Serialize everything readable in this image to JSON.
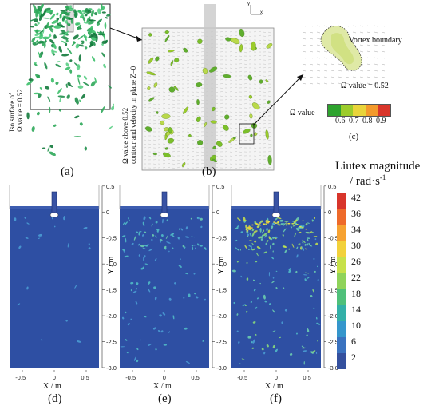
{
  "top": {
    "a": {
      "label": "Iso surface of",
      "label2": "Ω value = 0.52",
      "caption": "(a)"
    },
    "b": {
      "label1": "Ω value above 0.52",
      "label2": "contour and velocity in plane Z=0",
      "caption": "(b)",
      "axis_y": "y",
      "axis_x": "x"
    },
    "c": {
      "vortex_boundary": "Vortex boundary",
      "omega_value_eq": "Ω value = 0.52",
      "omega_value": "Ω value",
      "colorbar_ticks": [
        "0.6",
        "0.7",
        "0.8",
        "0.9"
      ],
      "colorbar_colors": [
        "#2ea32e",
        "#9ccc2b",
        "#e9d43a",
        "#f39a2b",
        "#d9362b"
      ],
      "caption": "(c)"
    }
  },
  "bottom": {
    "legend_title1": "Liutex magnitude",
    "legend_title2": "/ rad·s",
    "legend_sup": "-1",
    "legend_ticks": [
      "42",
      "36",
      "34",
      "30",
      "26",
      "22",
      "18",
      "14",
      "10",
      "6",
      "2"
    ],
    "y_ticks": [
      "0.5",
      "0",
      "-0.5",
      "-1.0",
      "-1.5",
      "-2.0",
      "-2.5",
      "-3.0"
    ],
    "x_ticks": [
      "-0.5",
      "0",
      "0.5"
    ],
    "y_label": "Y / m",
    "x_label": "X / m",
    "captions": [
      "(d)",
      "(e)",
      "(f)"
    ]
  }
}
